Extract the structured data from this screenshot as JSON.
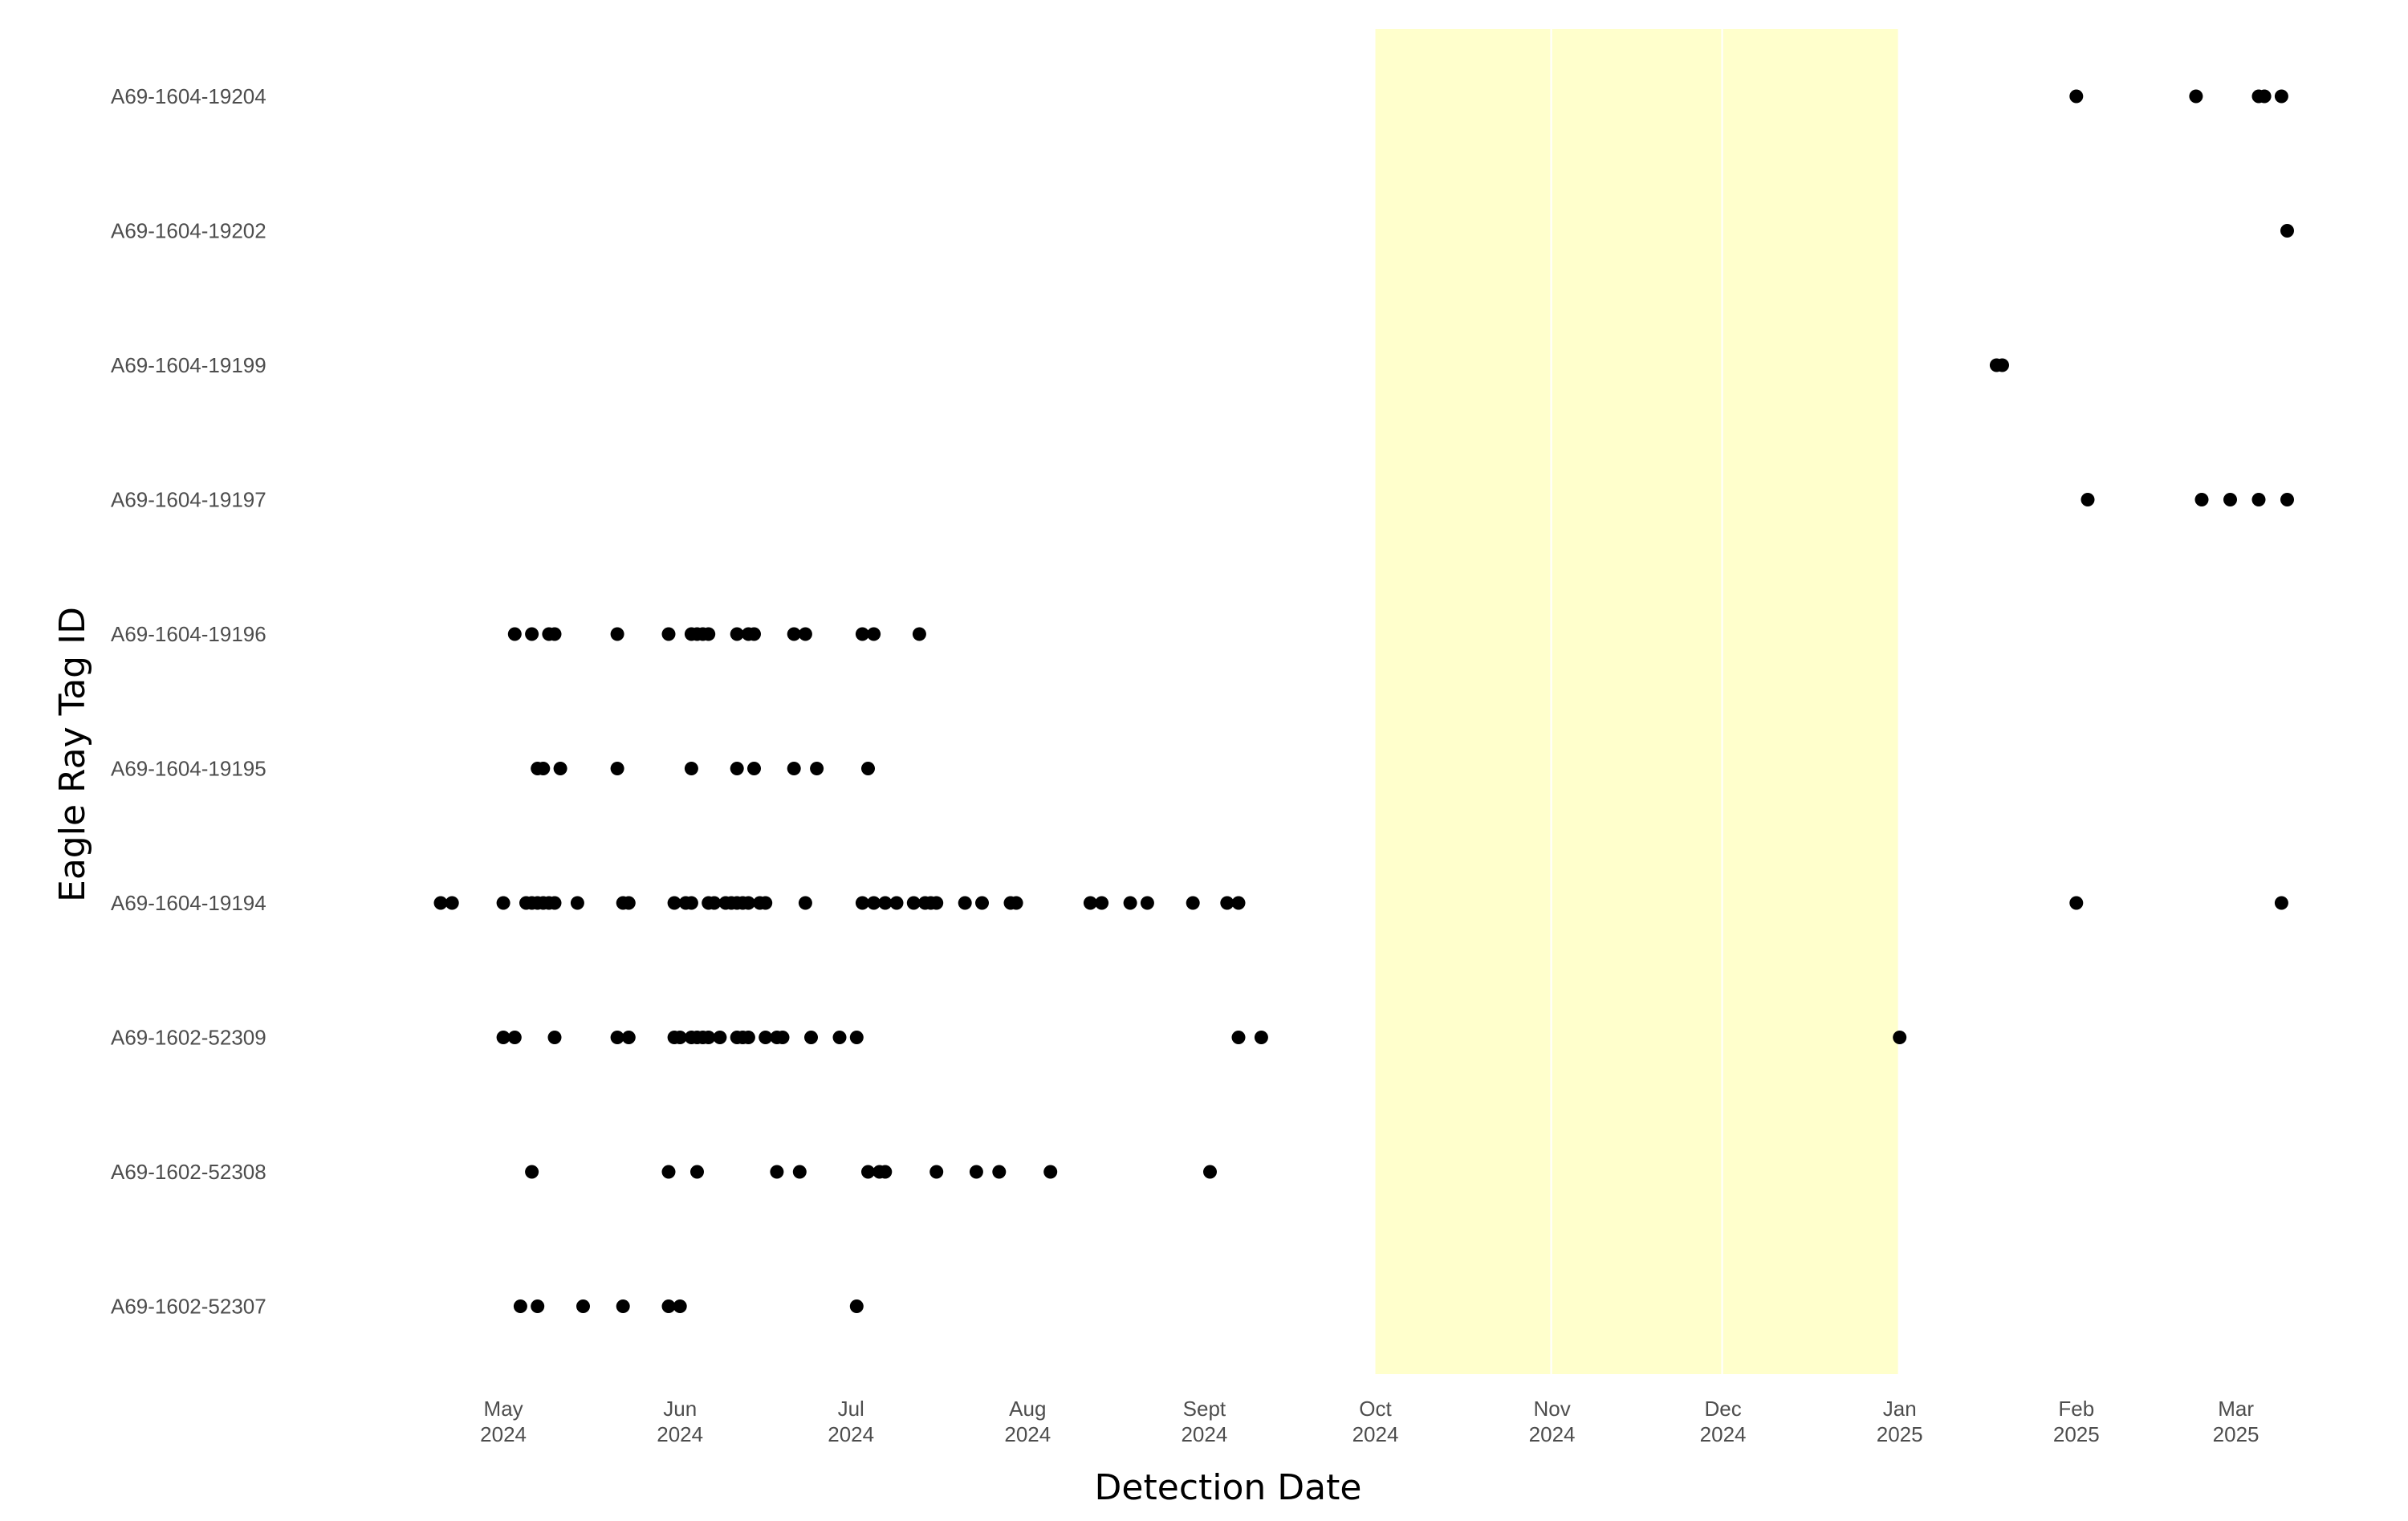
{
  "chart_data": {
    "type": "scatter",
    "title": "",
    "xlabel": "Detection Date",
    "ylabel": "Eagle Ray Tag ID",
    "xlim": [
      "2024-04-10",
      "2025-03-15"
    ],
    "grid": false,
    "legend": "none",
    "point_color": "#000000",
    "shade_color": "#ffffcc",
    "shaded_periods": [
      {
        "start": "2024-10-01",
        "end": "2024-10-31"
      },
      {
        "start": "2024-11-01",
        "end": "2024-11-30"
      },
      {
        "start": "2024-12-01",
        "end": "2024-12-31"
      }
    ],
    "x_ticks": [
      {
        "date": "2024-05-01",
        "label1": "May",
        "label2": "2024"
      },
      {
        "date": "2024-06-01",
        "label1": "Jun",
        "label2": "2024"
      },
      {
        "date": "2024-07-01",
        "label1": "Jul",
        "label2": "2024"
      },
      {
        "date": "2024-08-01",
        "label1": "Aug",
        "label2": "2024"
      },
      {
        "date": "2024-09-01",
        "label1": "Sept",
        "label2": "2024"
      },
      {
        "date": "2024-10-01",
        "label1": "Oct",
        "label2": "2024"
      },
      {
        "date": "2024-11-01",
        "label1": "Nov",
        "label2": "2024"
      },
      {
        "date": "2024-12-01",
        "label1": "Dec",
        "label2": "2024"
      },
      {
        "date": "2025-01-01",
        "label1": "Jan",
        "label2": "2025"
      },
      {
        "date": "2025-02-01",
        "label1": "Feb",
        "label2": "2025"
      },
      {
        "date": "2025-03-01",
        "label1": "Mar",
        "label2": "2025"
      }
    ],
    "categories": [
      "A69-1604-19204",
      "A69-1604-19202",
      "A69-1604-19199",
      "A69-1604-19197",
      "A69-1604-19196",
      "A69-1604-19195",
      "A69-1604-19194",
      "A69-1602-52309",
      "A69-1602-52308",
      "A69-1602-52307"
    ],
    "series": [
      {
        "tag": "A69-1604-19204",
        "dates": [
          "2025-02-01",
          "2025-02-22",
          "2025-03-05",
          "2025-03-06",
          "2025-03-09"
        ]
      },
      {
        "tag": "A69-1604-19202",
        "dates": [
          "2025-03-10"
        ]
      },
      {
        "tag": "A69-1604-19199",
        "dates": [
          "2025-01-18",
          "2025-01-19"
        ]
      },
      {
        "tag": "A69-1604-19197",
        "dates": [
          "2025-02-03",
          "2025-02-23",
          "2025-02-28",
          "2025-03-05",
          "2025-03-10"
        ]
      },
      {
        "tag": "A69-1604-19196",
        "dates": [
          "2024-05-03",
          "2024-05-06",
          "2024-05-09",
          "2024-05-10",
          "2024-05-21",
          "2024-05-30",
          "2024-06-03",
          "2024-06-04",
          "2024-06-05",
          "2024-06-06",
          "2024-06-11",
          "2024-06-13",
          "2024-06-14",
          "2024-06-21",
          "2024-06-23",
          "2024-07-03",
          "2024-07-05",
          "2024-07-13"
        ]
      },
      {
        "tag": "A69-1604-19195",
        "dates": [
          "2024-05-07",
          "2024-05-08",
          "2024-05-11",
          "2024-05-21",
          "2024-06-03",
          "2024-06-11",
          "2024-06-14",
          "2024-06-21",
          "2024-06-25",
          "2024-07-04"
        ]
      },
      {
        "tag": "A69-1604-19194",
        "dates": [
          "2024-04-20",
          "2024-04-22",
          "2024-05-01",
          "2024-05-05",
          "2024-05-06",
          "2024-05-07",
          "2024-05-08",
          "2024-05-09",
          "2024-05-10",
          "2024-05-14",
          "2024-05-22",
          "2024-05-23",
          "2024-05-31",
          "2024-06-02",
          "2024-06-03",
          "2024-06-06",
          "2024-06-07",
          "2024-06-09",
          "2024-06-10",
          "2024-06-11",
          "2024-06-12",
          "2024-06-13",
          "2024-06-15",
          "2024-06-16",
          "2024-06-23",
          "2024-07-03",
          "2024-07-05",
          "2024-07-07",
          "2024-07-09",
          "2024-07-12",
          "2024-07-14",
          "2024-07-15",
          "2024-07-16",
          "2024-07-21",
          "2024-07-24",
          "2024-07-29",
          "2024-07-30",
          "2024-08-12",
          "2024-08-14",
          "2024-08-19",
          "2024-08-22",
          "2024-08-30",
          "2024-09-05",
          "2024-09-07",
          "2025-02-01",
          "2025-03-09"
        ]
      },
      {
        "tag": "A69-1602-52309",
        "dates": [
          "2024-05-01",
          "2024-05-03",
          "2024-05-10",
          "2024-05-21",
          "2024-05-23",
          "2024-05-31",
          "2024-06-01",
          "2024-06-03",
          "2024-06-04",
          "2024-06-05",
          "2024-06-06",
          "2024-06-08",
          "2024-06-11",
          "2024-06-12",
          "2024-06-13",
          "2024-06-16",
          "2024-06-18",
          "2024-06-19",
          "2024-06-24",
          "2024-06-29",
          "2024-07-02",
          "2024-09-07",
          "2024-09-11",
          "2025-01-01"
        ]
      },
      {
        "tag": "A69-1602-52308",
        "dates": [
          "2024-05-06",
          "2024-05-30",
          "2024-06-04",
          "2024-06-18",
          "2024-06-22",
          "2024-07-04",
          "2024-07-06",
          "2024-07-07",
          "2024-07-16",
          "2024-07-23",
          "2024-07-27",
          "2024-08-05",
          "2024-09-02"
        ]
      },
      {
        "tag": "A69-1602-52307",
        "dates": [
          "2024-05-04",
          "2024-05-07",
          "2024-05-15",
          "2024-05-22",
          "2024-05-30",
          "2024-06-01",
          "2024-07-02"
        ]
      }
    ]
  }
}
